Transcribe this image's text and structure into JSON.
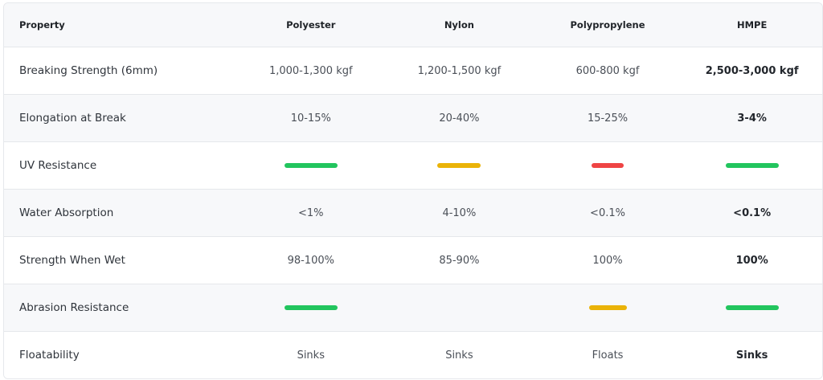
{
  "table": {
    "headers": [
      "Property",
      "Polyester",
      "Nylon",
      "Polypropylene",
      "HMPE"
    ],
    "rows": [
      {
        "property": "Breaking Strength (6mm)",
        "polyester": "1,000-1,300 kgf",
        "nylon": "1,200-1,500 kgf",
        "polypropylene": "600-800 kgf",
        "hmpe": "2,500-3,000 kgf"
      },
      {
        "property": "Elongation at Break",
        "polyester": "10-15%",
        "nylon": "20-40%",
        "polypropylene": "15-25%",
        "hmpe": "3-4%"
      },
      {
        "property": "UV Resistance",
        "polyester": "",
        "nylon": "",
        "polypropylene": "",
        "hmpe": ""
      },
      {
        "property": "Water Absorption",
        "polyester": "<1%",
        "nylon": "4-10%",
        "polypropylene": "<0.1%",
        "hmpe": "<0.1%"
      },
      {
        "property": "Strength When Wet",
        "polyester": "98-100%",
        "nylon": "85-90%",
        "polypropylene": "100%",
        "hmpe": "100%"
      },
      {
        "property": "Abrasion Resistance",
        "polyester": "",
        "nylon": "",
        "polypropylene": "",
        "hmpe": ""
      },
      {
        "property": "Floatability",
        "polyester": "Sinks",
        "nylon": "Sinks",
        "polypropylene": "Floats",
        "hmpe": "Sinks"
      }
    ]
  },
  "ratings": {
    "uv_resistance": {
      "polyester": "good",
      "nylon": "moderate",
      "polypropylene": "poor",
      "hmpe": "good"
    },
    "abrasion_resistance": {
      "polyester": "good",
      "nylon": "none",
      "polypropylene": "moderate",
      "hmpe": "good"
    }
  },
  "colors": {
    "good": "#22c55e",
    "moderate": "#eab308",
    "poor": "#ef4444",
    "header_bg": "#f7f8fa",
    "row_shaded_bg": "#f7f8fa"
  }
}
